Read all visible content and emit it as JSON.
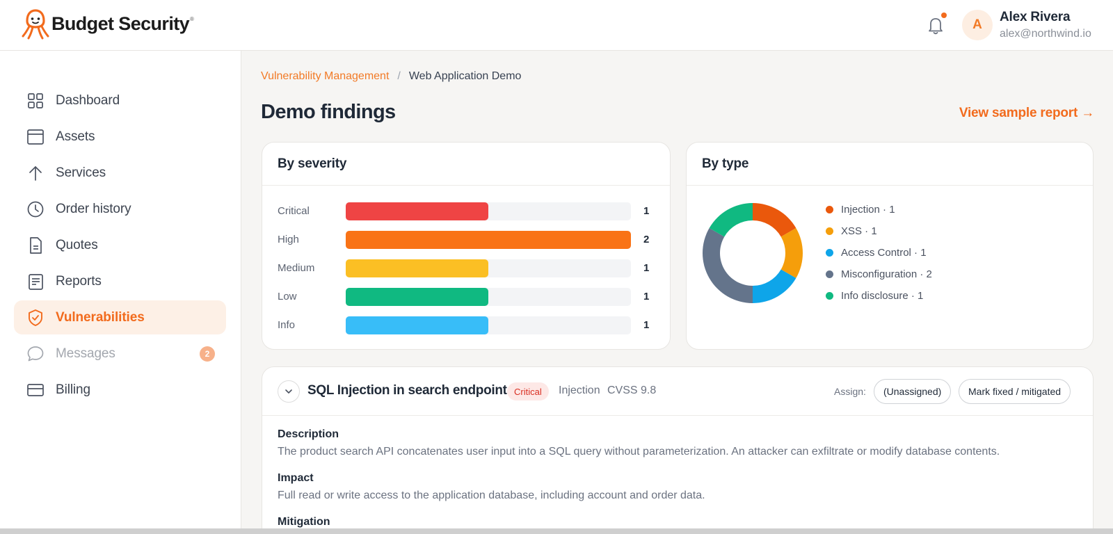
{
  "brand": {
    "name": "Budget Security",
    "reg": "®",
    "accent": "#f26b1d"
  },
  "user": {
    "initial": "A",
    "name": "Alex Rivera",
    "email": "alex@northwind.io"
  },
  "sidebar": {
    "items": [
      {
        "label": "Dashboard",
        "icon": "grid-icon"
      },
      {
        "label": "Assets",
        "icon": "window-icon"
      },
      {
        "label": "Services",
        "icon": "arrow-up-icon"
      },
      {
        "label": "Order history",
        "icon": "clock-icon"
      },
      {
        "label": "Quotes",
        "icon": "document-icon"
      },
      {
        "label": "Reports",
        "icon": "report-icon"
      },
      {
        "label": "Vulnerabilities",
        "icon": "shield-check-icon",
        "active": true
      },
      {
        "label": "Messages",
        "icon": "chat-icon",
        "badge": "2",
        "muted": true
      },
      {
        "label": "Billing",
        "icon": "credit-card-icon"
      }
    ]
  },
  "breadcrumb": {
    "parent": "Vulnerability Management",
    "separator": "/",
    "current": "Web Application Demo"
  },
  "page": {
    "title": "Demo findings",
    "report_link": "View sample report →"
  },
  "severity_card": {
    "title": "By severity",
    "max": 2,
    "rows": [
      {
        "label": "Critical",
        "count": 1,
        "color": "#ef4444"
      },
      {
        "label": "High",
        "count": 2,
        "color": "#f97316"
      },
      {
        "label": "Medium",
        "count": 1,
        "color": "#fbbf24"
      },
      {
        "label": "Low",
        "count": 1,
        "color": "#10b981"
      },
      {
        "label": "Info",
        "count": 1,
        "color": "#38bdf8"
      }
    ]
  },
  "type_card": {
    "title": "By type",
    "segments": [
      {
        "label": "Injection · 1",
        "value": 1,
        "color": "#ea580c"
      },
      {
        "label": "XSS · 1",
        "value": 1,
        "color": "#f59e0b"
      },
      {
        "label": "Access Control · 1",
        "value": 1,
        "color": "#0ea5e9"
      },
      {
        "label": "Misconfiguration · 2",
        "value": 2,
        "color": "#64748b"
      },
      {
        "label": "Info disclosure · 1",
        "value": 1,
        "color": "#10b981"
      }
    ]
  },
  "finding": {
    "title": "SQL Injection in search endpoint",
    "severity": "Critical",
    "type": "Injection",
    "cvss": "CVSS 9.8",
    "assign_label": "Assign:",
    "assign_value": "(Unassigned)",
    "mark_button": "Mark fixed / mitigated",
    "description_head": "Description",
    "description": "The product search API concatenates user input into a SQL query without parameterization. An attacker can exfiltrate or modify database contents.",
    "impact_head": "Impact",
    "impact": "Full read or write access to the application database, including account and order data.",
    "mitigation_head": "Mitigation"
  }
}
